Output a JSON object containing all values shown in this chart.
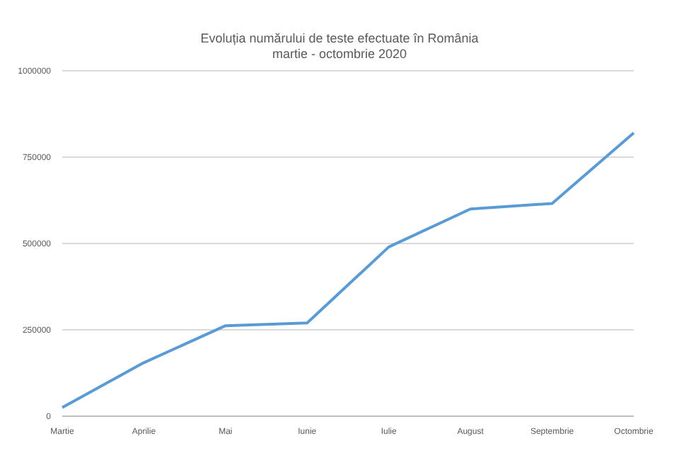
{
  "chart_data": {
    "type": "line",
    "title": "Evoluția numărului de teste efectuate în România",
    "subtitle": "martie - octombrie 2020",
    "categories": [
      "Martie",
      "Aprilie",
      "Mai",
      "Iunie",
      "Iulie",
      "August",
      "Septembrie",
      "Octombrie"
    ],
    "series": [
      {
        "color": "#5b9bd5",
        "values": [
          25000,
          155000,
          262000,
          270000,
          490000,
          600000,
          616000,
          820000
        ]
      }
    ],
    "ylim": [
      0,
      1000000
    ],
    "yticks": [
      0,
      250000,
      500000,
      750000,
      1000000
    ],
    "grid": "y",
    "legend": false,
    "marker": "none",
    "line_style": "solid"
  }
}
